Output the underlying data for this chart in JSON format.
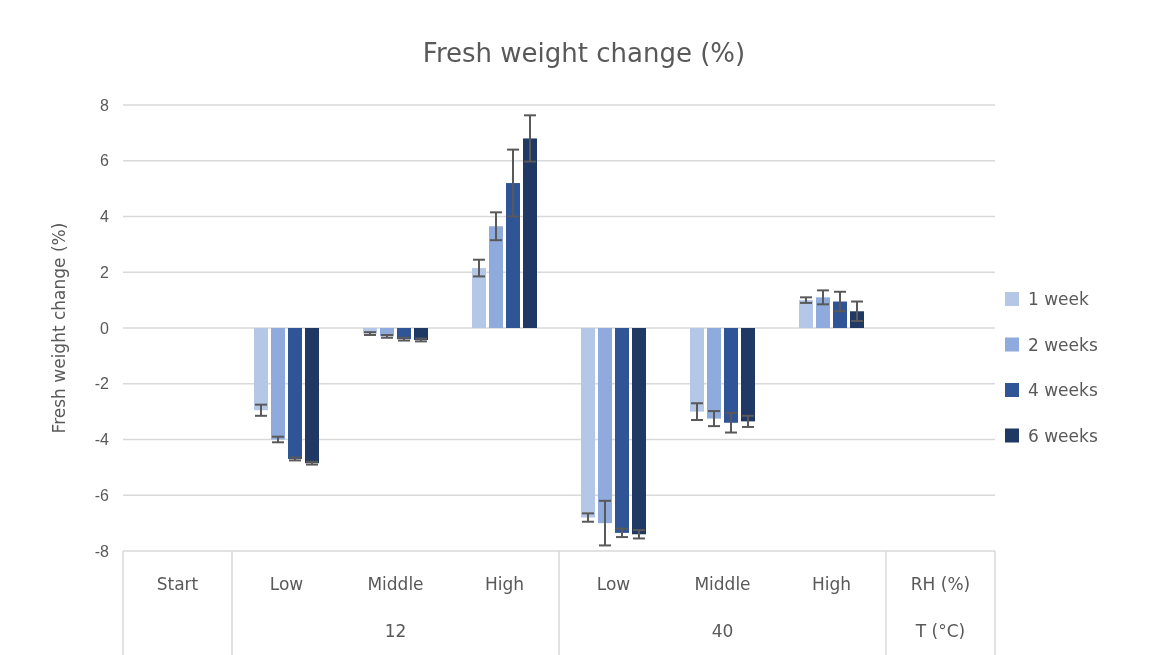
{
  "chart_data": {
    "type": "bar",
    "title": "Fresh weight change (%)",
    "ylabel": "Fresh weight change (%)",
    "xlabel": "RH (%)",
    "categories": [
      "Start",
      "Low",
      "Middle",
      "High",
      "Low",
      "Middle",
      "High"
    ],
    "annotations": [
      "12",
      "40",
      "T (°C)"
    ],
    "series": [
      {
        "name": "1 week",
        "color": "#b4c7e7",
        "values": [
          null,
          -2.95,
          -0.2,
          2.15,
          -6.8,
          -3.0,
          1.0
        ],
        "errors": [
          null,
          0.2,
          0.05,
          0.3,
          0.15,
          0.3,
          0.1
        ]
      },
      {
        "name": "2 weeks",
        "color": "#8faadc",
        "values": [
          null,
          -4.0,
          -0.3,
          3.65,
          -7.0,
          -3.25,
          1.1
        ],
        "errors": [
          null,
          0.1,
          0.05,
          0.5,
          0.8,
          0.27,
          0.25
        ]
      },
      {
        "name": "4 weeks",
        "color": "#2f5597",
        "values": [
          null,
          -4.7,
          -0.4,
          5.2,
          -7.35,
          -3.4,
          0.95
        ],
        "errors": [
          null,
          0.05,
          0.05,
          1.2,
          0.15,
          0.35,
          0.35
        ]
      },
      {
        "name": "6 weeks",
        "color": "#203864",
        "values": [
          null,
          -4.85,
          -0.43,
          6.8,
          -7.4,
          -3.35,
          0.6
        ],
        "errors": [
          null,
          0.05,
          0.05,
          0.83,
          0.15,
          0.2,
          0.35
        ]
      }
    ],
    "ylim": [
      -8,
      8
    ],
    "yticks": [
      -8,
      -6,
      -4,
      -2,
      0,
      2,
      4,
      6,
      8
    ],
    "grid": "y",
    "legend": "right"
  }
}
